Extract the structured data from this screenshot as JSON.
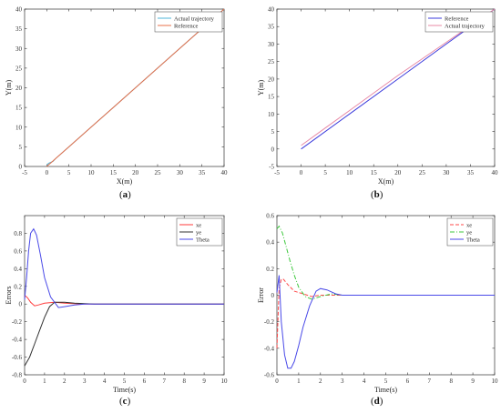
{
  "panels": [
    {
      "label": "a",
      "xlabel": "X(m)",
      "ylabel": "Y(m)",
      "xlim": [
        -5,
        40
      ],
      "ylim": [
        0,
        40
      ],
      "xticks": [
        -5,
        0,
        5,
        10,
        15,
        20,
        25,
        30,
        35,
        40
      ],
      "yticks": [
        0,
        5,
        10,
        15,
        20,
        25,
        30,
        35,
        40
      ],
      "legend": [
        "Actual trajectory",
        "Reference"
      ],
      "legend_position": "top-right",
      "colors": {
        "actual": "#4fb6d8",
        "reference": "#e8704a"
      }
    },
    {
      "label": "b",
      "xlabel": "X(m)",
      "ylabel": "Y(m)",
      "xlim": [
        -5,
        40
      ],
      "ylim": [
        -5,
        40
      ],
      "xticks": [
        -5,
        0,
        5,
        10,
        15,
        20,
        25,
        30,
        35,
        40
      ],
      "yticks": [
        -5,
        0,
        5,
        10,
        15,
        20,
        25,
        30,
        35,
        40
      ],
      "legend": [
        "Reference",
        "Actual trajectory"
      ],
      "legend_position": "top-right",
      "colors": {
        "reference": "#3b3bdc",
        "actual": "#e88aa6"
      }
    },
    {
      "label": "c",
      "xlabel": "Time(s)",
      "ylabel": "Errors",
      "xlim": [
        0,
        10
      ],
      "ylim": [
        -0.8,
        1
      ],
      "xticks": [
        0,
        1,
        2,
        3,
        4,
        5,
        6,
        7,
        8,
        9,
        10
      ],
      "yticks": [
        -0.8,
        -0.6,
        -0.4,
        -0.2,
        0,
        0.2,
        0.4,
        0.6,
        0.8
      ],
      "legend": [
        "xe",
        "ye",
        "Theta"
      ],
      "legend_position": "top-right",
      "colors": {
        "xe": "#ff3b3b",
        "ye": "#333333",
        "theta": "#4a4ae8"
      }
    },
    {
      "label": "d",
      "xlabel": "Time(s)",
      "ylabel": "Error",
      "xlim": [
        0,
        10
      ],
      "ylim": [
        -0.6,
        0.6
      ],
      "xticks": [
        0,
        1,
        2,
        3,
        4,
        5,
        6,
        7,
        8,
        9,
        10
      ],
      "yticks": [
        -0.6,
        -0.4,
        -0.2,
        0,
        0.2,
        0.4,
        0.6
      ],
      "legend": [
        "xe",
        "ye",
        "Theta"
      ],
      "legend_position": "top-right",
      "colors": {
        "xe": "#ff4a4a",
        "ye": "#3cc83c",
        "theta": "#4a4ae8"
      }
    }
  ],
  "chart_data": [
    {
      "type": "line",
      "xlabel": "X(m)",
      "ylabel": "Y(m)",
      "xlim": [
        -5,
        40
      ],
      "ylim": [
        0,
        40
      ],
      "series": [
        {
          "name": "Actual trajectory",
          "x": [
            0,
            0.4,
            1,
            1.4,
            2,
            5,
            10,
            20,
            30,
            40
          ],
          "y": [
            0.3,
            0.8,
            1.1,
            1.3,
            2,
            5,
            10,
            20,
            30,
            40
          ]
        },
        {
          "name": "Reference",
          "x": [
            0,
            0.5,
            1,
            2,
            5,
            10,
            20,
            30,
            40
          ],
          "y": [
            0,
            0.5,
            1,
            2,
            5,
            10,
            20,
            30,
            40
          ]
        }
      ]
    },
    {
      "type": "line",
      "xlabel": "X(m)",
      "ylabel": "Y(m)",
      "xlim": [
        -5,
        40
      ],
      "ylim": [
        -5,
        40
      ],
      "series": [
        {
          "name": "Reference",
          "x": [
            0,
            10,
            20,
            30,
            40
          ],
          "y": [
            0,
            10,
            20,
            30,
            40
          ]
        },
        {
          "name": "Actual trajectory",
          "x": [
            0,
            5,
            10,
            20,
            30,
            40
          ],
          "y": [
            1,
            6,
            11,
            21,
            30.5,
            40
          ]
        }
      ]
    },
    {
      "type": "line",
      "xlabel": "Time(s)",
      "ylabel": "Errors",
      "xlim": [
        0,
        10
      ],
      "ylim": [
        -0.8,
        1
      ],
      "series": [
        {
          "name": "xe",
          "x": [
            0,
            0.15,
            0.3,
            0.5,
            0.7,
            1.0,
            1.5,
            2.0,
            3,
            10
          ],
          "y": [
            0.1,
            0.07,
            0.02,
            -0.02,
            -0.01,
            0.01,
            0.02,
            0.01,
            0,
            0
          ]
        },
        {
          "name": "ye",
          "x": [
            0,
            0.25,
            0.5,
            0.75,
            1.0,
            1.25,
            1.5,
            2.0,
            2.5,
            3.5,
            10
          ],
          "y": [
            -0.7,
            -0.6,
            -0.45,
            -0.3,
            -0.15,
            -0.03,
            0.02,
            0.02,
            0.01,
            0,
            0
          ]
        },
        {
          "name": "Theta",
          "x": [
            0,
            0.1,
            0.2,
            0.3,
            0.45,
            0.6,
            0.8,
            1.0,
            1.3,
            1.7,
            2.0,
            2.5,
            3.0,
            10
          ],
          "y": [
            0.05,
            0.3,
            0.6,
            0.8,
            0.85,
            0.78,
            0.55,
            0.3,
            0.08,
            -0.04,
            -0.03,
            -0.01,
            0,
            0
          ]
        }
      ]
    },
    {
      "type": "line",
      "xlabel": "Time(s)",
      "ylabel": "Error",
      "xlim": [
        0,
        10
      ],
      "ylim": [
        -0.6,
        0.6
      ],
      "series": [
        {
          "name": "xe",
          "x": [
            0,
            0.1,
            0.2,
            0.3,
            0.5,
            0.8,
            1.2,
            1.6,
            2.0,
            3.0,
            10
          ],
          "y": [
            -0.4,
            0.05,
            0.12,
            0.12,
            0.08,
            0.03,
            0.01,
            -0.01,
            0,
            0,
            0
          ]
        },
        {
          "name": "ye",
          "x": [
            0,
            0.1,
            0.25,
            0.4,
            0.6,
            0.8,
            1.0,
            1.3,
            1.6,
            2.0,
            2.5,
            3.0,
            10
          ],
          "y": [
            0.5,
            0.52,
            0.47,
            0.38,
            0.26,
            0.15,
            0.06,
            -0.01,
            -0.03,
            -0.01,
            0.01,
            0,
            0
          ]
        },
        {
          "name": "Theta",
          "x": [
            0,
            0.1,
            0.2,
            0.35,
            0.5,
            0.65,
            0.8,
            1.0,
            1.2,
            1.5,
            1.8,
            2.0,
            2.3,
            2.7,
            3.0,
            4.0,
            10
          ],
          "y": [
            0.02,
            0.15,
            -0.2,
            -0.45,
            -0.55,
            -0.55,
            -0.5,
            -0.38,
            -0.24,
            -0.08,
            0.03,
            0.05,
            0.04,
            0.01,
            0,
            0,
            0
          ]
        }
      ]
    }
  ]
}
